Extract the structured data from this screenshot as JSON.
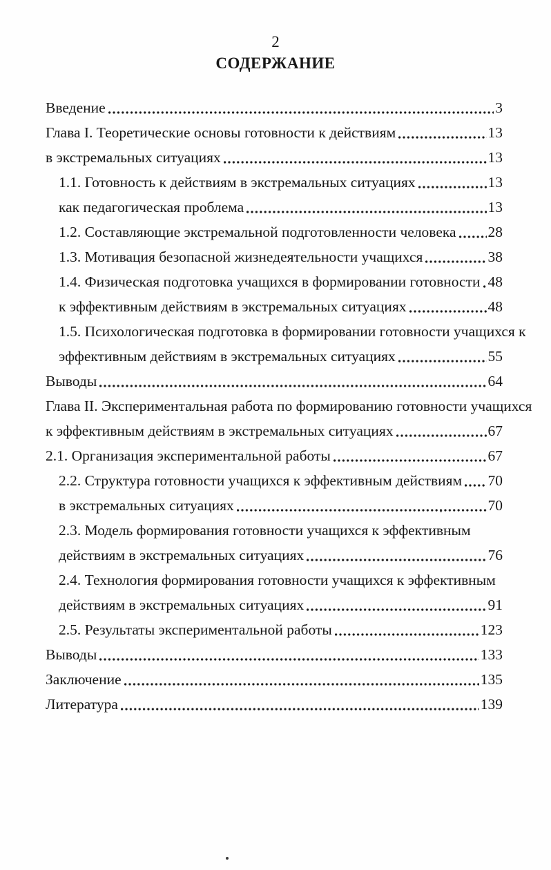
{
  "page": {
    "number": "2",
    "title": "СОДЕРЖАНИЕ"
  },
  "toc": {
    "rows": [
      {
        "text": "Введение",
        "page": "3",
        "indent": false
      },
      {
        "text": "Глава I. Теоретические основы готовности к действиям",
        "page": "13",
        "indent": false
      },
      {
        "text": "в экстремальных ситуациях",
        "page": "13",
        "indent": false
      },
      {
        "text": "1.1. Готовность к действиям в экстремальных ситуациях",
        "page": "13",
        "indent": true
      },
      {
        "text": "как педагогическая проблема",
        "page": "13",
        "indent": true
      },
      {
        "text": "1.2. Составляющие экстремальной подготовленности человека",
        "page": "28",
        "indent": true
      },
      {
        "text": "1.3. Мотивация безопасной жизнедеятельности учащихся",
        "page": "38",
        "indent": true
      },
      {
        "text": "1.4. Физическая подготовка учащихся в формировании готовности",
        "page": "48",
        "indent": true
      },
      {
        "text": "к эффективным действиям в экстремальных ситуациях",
        "page": "48",
        "indent": true
      },
      {
        "text": "1.5. Психологическая подготовка в формировании готовности учащихся к",
        "page": null,
        "indent": true
      },
      {
        "text": "эффективным действиям в экстремальных ситуациях",
        "page": "55",
        "indent": true
      },
      {
        "text": "Выводы",
        "page": "64",
        "indent": false
      },
      {
        "text": "Глава II. Экспериментальная работа по формированию готовности учащихся",
        "page": null,
        "indent": false
      },
      {
        "text": "к эффективным действиям в экстремальных ситуациях",
        "page": "67",
        "indent": false
      },
      {
        "text": "2.1. Организация экспериментальной работы",
        "page": "67",
        "indent": false
      },
      {
        "text": "2.2. Структура готовности учащихся к эффективным действиям",
        "page": "70",
        "indent": true
      },
      {
        "text": "в экстремальных ситуациях",
        "page": "70",
        "indent": true
      },
      {
        "text": "2.3. Модель формирования готовности учащихся к эффективным",
        "page": null,
        "indent": true
      },
      {
        "text": "действиям в экстремальных ситуациях",
        "page": "76",
        "indent": true
      },
      {
        "text": "2.4. Технология формирования готовности учащихся к эффективным",
        "page": null,
        "indent": true
      },
      {
        "text": "действиям в экстремальных ситуациях",
        "page": "91",
        "indent": true
      },
      {
        "text": "2.5. Результаты экспериментальной работы",
        "page": "123",
        "indent": true
      },
      {
        "text": "Выводы",
        "page": "133",
        "indent": false
      },
      {
        "text": "Заключение",
        "page": "135",
        "indent": false
      },
      {
        "text": "Литература",
        "page": "139",
        "indent": false
      }
    ]
  }
}
